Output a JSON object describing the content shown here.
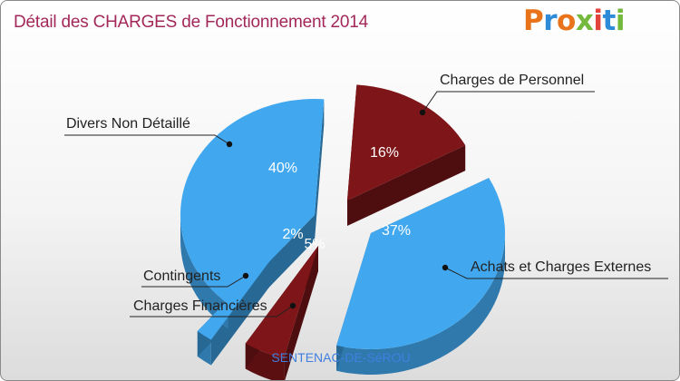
{
  "title": "Détail des CHARGES de Fonctionnement 2014",
  "logo": {
    "letters": [
      "P",
      "r",
      "o",
      "x",
      "i",
      "t",
      "i"
    ],
    "colors": [
      "#e8731a",
      "#2e8bd8",
      "#e8731a",
      "#74b83c",
      "#e2443b",
      "#2e8bd8",
      "#74b83c"
    ]
  },
  "footer": "SENTENAC-DE-SéROU",
  "chart_data": {
    "type": "pie",
    "title": "Détail des CHARGES de Fonctionnement 2014",
    "slices": [
      {
        "label": "Charges de Personnel",
        "value": 16,
        "percent_label": "16%",
        "color": "#7e1518"
      },
      {
        "label": "Achats et Charges Externes",
        "value": 37,
        "percent_label": "37%",
        "color": "#41a8f0"
      },
      {
        "label": "Charges Financières",
        "value": 5,
        "percent_label": "5%",
        "color": "#7e1518"
      },
      {
        "label": "Contingents",
        "value": 2,
        "percent_label": "2%",
        "color": "#41a8f0"
      },
      {
        "label": "Divers Non Détaillé",
        "value": 40,
        "percent_label": "40%",
        "color": "#41a8f0"
      }
    ]
  }
}
